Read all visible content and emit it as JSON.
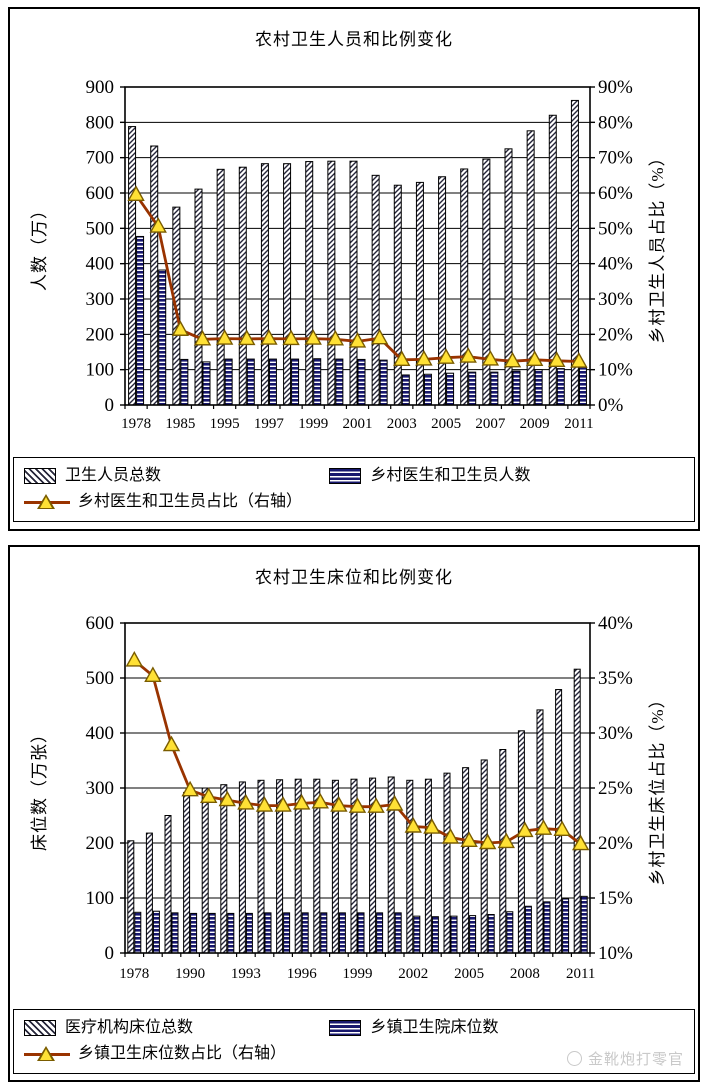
{
  "colors": {
    "line": "#993300",
    "marker": "#FFE135",
    "marker_stroke": "#7a5c00",
    "hatch": "#26263a",
    "navy": "#17176e",
    "axis": "#000000",
    "watermark": "#c9c9c9"
  },
  "watermark": {
    "text": "金靴炮打零官",
    "icon": "circle-logo-icon"
  },
  "chart_data": [
    {
      "type": "bar",
      "title": "农村卫生人员和比例变化",
      "categories": [
        "1978",
        "1980",
        "1985",
        "1990",
        "1995",
        "1996",
        "1997",
        "1998",
        "1999",
        "2000",
        "2001",
        "2002",
        "2003",
        "2004",
        "2005",
        "2006",
        "2007",
        "2008",
        "2009",
        "2010",
        "2011"
      ],
      "x_tick_labels": [
        "1978",
        "1985",
        "1995",
        "1997",
        "1999",
        "2001",
        "2003",
        "2005",
        "2007",
        "2009",
        "2011"
      ],
      "label_every": 2,
      "left_axis": {
        "title": "人数（万）",
        "min": 0,
        "max": 900,
        "step": 100
      },
      "right_axis": {
        "title": "乡村卫生人员占比（%）",
        "min": 0,
        "max": 90,
        "step": 10,
        "unit": "%"
      },
      "grid": true,
      "legend_position": "bottom-box",
      "series": [
        {
          "name": "卫生人员总数",
          "type": "bar",
          "style": "diagonal-hatch",
          "axis": "left",
          "values": [
            788,
            733,
            560,
            611,
            667,
            673,
            683,
            683,
            689,
            690,
            690,
            650,
            622,
            630,
            646,
            668,
            696,
            725,
            776,
            820,
            862
          ]
        },
        {
          "name": "乡村医生和卫生员人数",
          "type": "bar",
          "style": "horizontal-stripes",
          "axis": "left",
          "values": [
            477,
            382,
            129,
            122,
            130,
            130,
            130,
            130,
            131,
            130,
            129,
            127,
            85,
            87,
            90,
            93,
            93,
            96,
            100,
            103,
            108
          ]
        },
        {
          "name": "乡村医生和卫生员占比（右轴）",
          "type": "line",
          "style": "triangle-marker",
          "axis": "right",
          "values": [
            59.5,
            50.5,
            21.3,
            18.6,
            18.8,
            18.7,
            18.8,
            18.7,
            18.8,
            18.6,
            18.0,
            18.9,
            12.8,
            12.9,
            13.4,
            13.7,
            12.9,
            12.4,
            12.8,
            12.5,
            12.3
          ]
        }
      ]
    },
    {
      "type": "bar",
      "title": "农村卫生床位和比例变化",
      "categories": [
        "1978",
        "1980",
        "1985",
        "1990",
        "1991",
        "1992",
        "1993",
        "1994",
        "1995",
        "1996",
        "1997",
        "1998",
        "1999",
        "2000",
        "2001",
        "2002",
        "2003",
        "2004",
        "2005",
        "2006",
        "2007",
        "2008",
        "2009",
        "2010",
        "2011"
      ],
      "x_tick_labels": [
        "1978",
        "1990",
        "1993",
        "1996",
        "1999",
        "2002",
        "2005",
        "2008",
        "2011"
      ],
      "label_every": 3,
      "left_axis": {
        "title": "床位数（万张）",
        "min": 0,
        "max": 600,
        "step": 100
      },
      "right_axis": {
        "title": "乡村卫生床位占比（%）",
        "min": 10,
        "max": 40,
        "step": 5,
        "unit": "%"
      },
      "grid": true,
      "legend_position": "bottom-box",
      "series": [
        {
          "name": "医疗机构床位总数",
          "type": "bar",
          "style": "diagonal-hatch",
          "axis": "left",
          "values": [
            204,
            218,
            250,
            292,
            300,
            306,
            311,
            314,
            315,
            316,
            316,
            314,
            316,
            318,
            320,
            314,
            316,
            327,
            337,
            351,
            370,
            404,
            442,
            479,
            516
          ]
        },
        {
          "name": "乡镇卫生院床位数",
          "type": "bar",
          "style": "horizontal-stripes",
          "axis": "left",
          "values": [
            74,
            76,
            73,
            72,
            72,
            72,
            72,
            73,
            73,
            73,
            73,
            73,
            73,
            73,
            73,
            67,
            66,
            67,
            68,
            70,
            75,
            85,
            93,
            99,
            103
          ]
        },
        {
          "name": "乡镇卫生床位数占比（右轴）",
          "type": "line",
          "style": "triangle-marker",
          "axis": "right",
          "values": [
            36.6,
            35.2,
            28.9,
            24.8,
            24.2,
            23.9,
            23.6,
            23.4,
            23.4,
            23.6,
            23.7,
            23.4,
            23.3,
            23.3,
            23.5,
            21.5,
            21.4,
            20.5,
            20.2,
            20.0,
            20.1,
            21.1,
            21.3,
            21.2,
            19.9
          ]
        }
      ]
    }
  ]
}
